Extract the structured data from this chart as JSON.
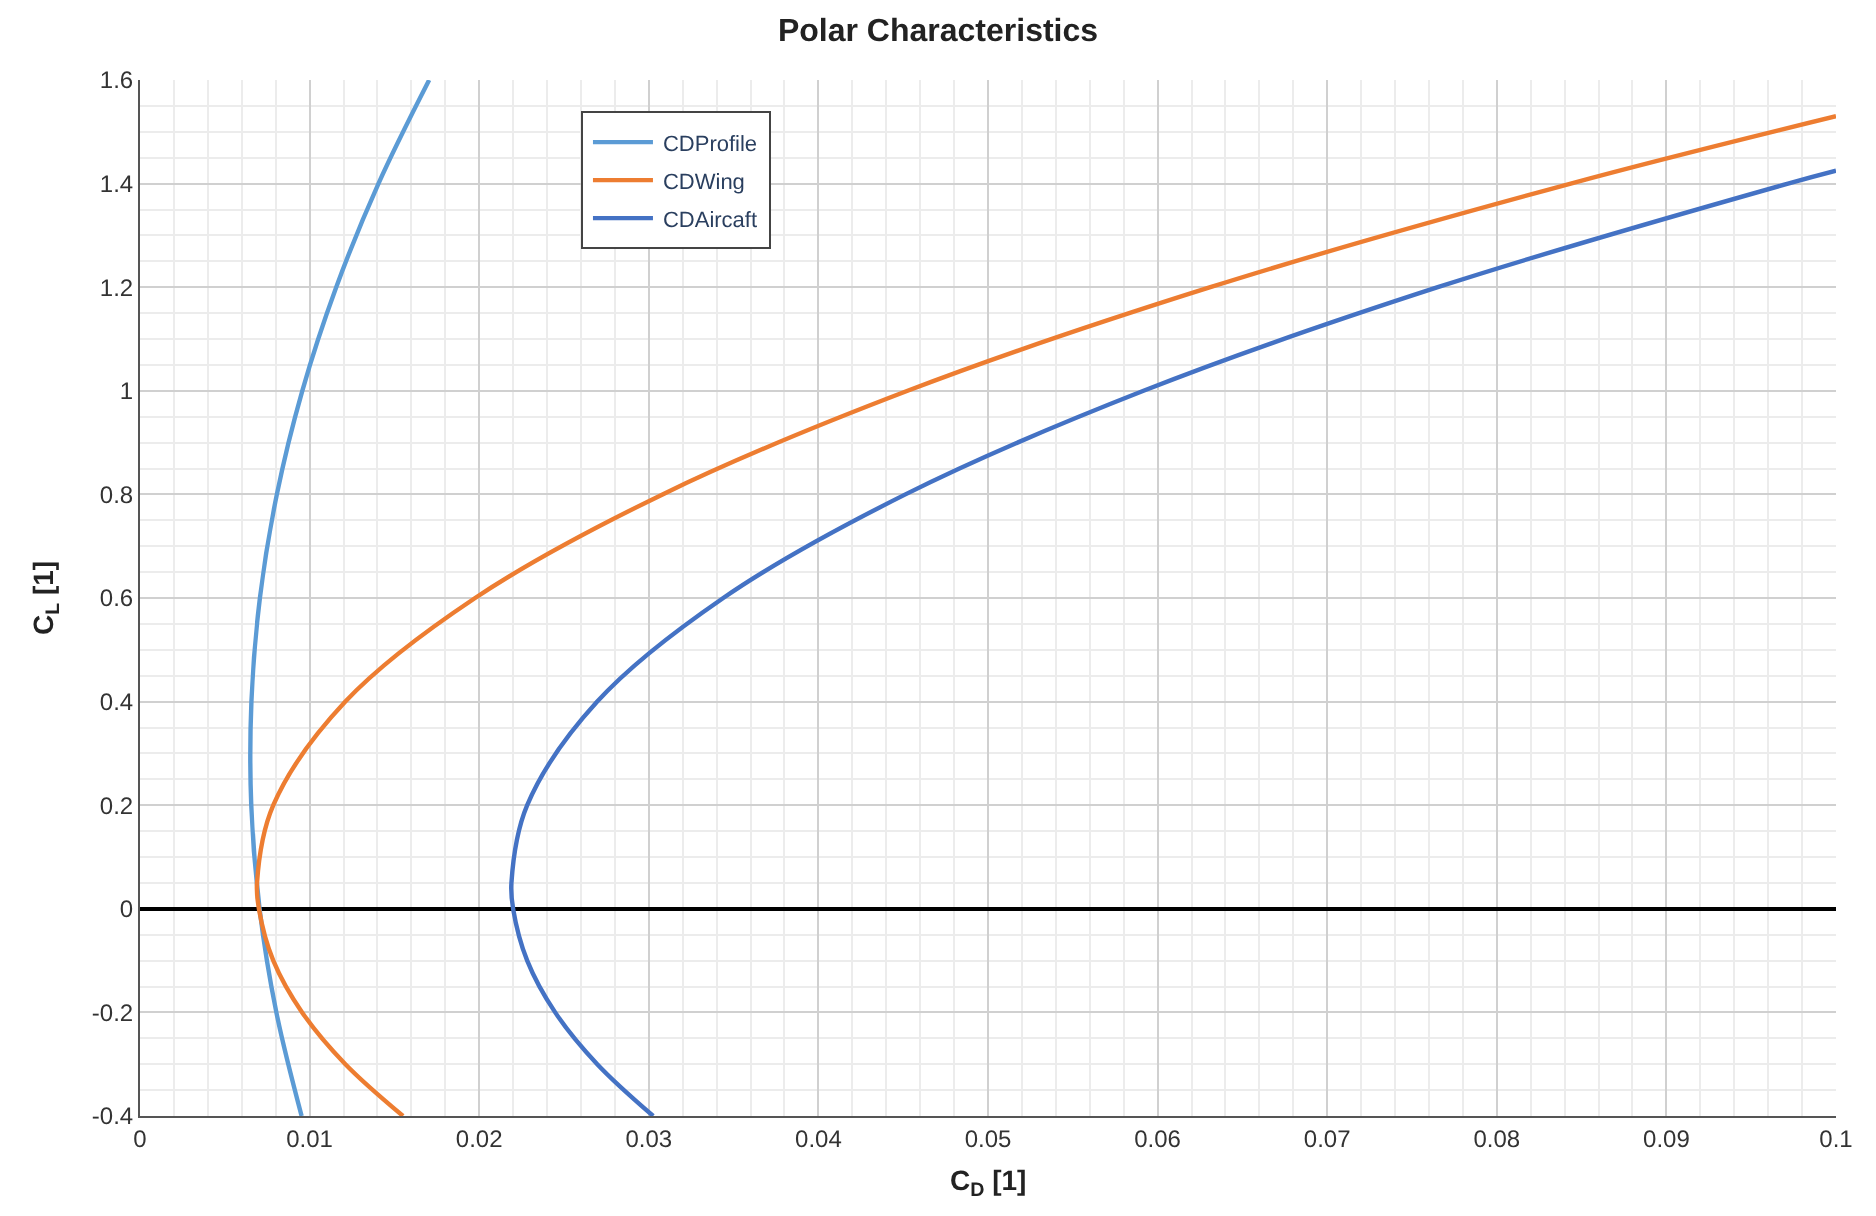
{
  "chart_data": {
    "type": "line",
    "title": "Polar Characteristics",
    "xlabel": "C$_{D}$ [1]",
    "ylabel": "C$_{L}$ [1]",
    "xlim": [
      0,
      0.1
    ],
    "xticks": [
      0,
      0.01,
      0.02,
      0.03,
      0.04,
      0.05,
      0.06,
      0.07,
      0.08,
      0.09,
      0.1
    ],
    "ylim": [
      -0.4,
      1.6
    ],
    "yticks": [
      -0.4,
      -0.2,
      0,
      0.2,
      0.4,
      0.6,
      0.8,
      1,
      1.2,
      1.4,
      1.6
    ],
    "grid": true,
    "legend": "top left",
    "line_style": "solid",
    "marker": "none",
    "series": [
      {
        "name": "CDProfile",
        "color": "#5b9bd5",
        "x": [
          0.00953,
          0.00804,
          0.00705,
          0.00656,
          0.00657,
          0.00707,
          0.00807,
          0.00957,
          0.01157,
          0.01406,
          0.01705
        ],
        "values": [
          -0.4,
          -0.2,
          0,
          0.2,
          0.4,
          0.6,
          0.8,
          1.0,
          1.2,
          1.4,
          1.6
        ]
      },
      {
        "name": "CDWing",
        "color": "#ed7d31",
        "x": [
          0.01551,
          0.01211,
          0.00956,
          0.00786,
          0.00701,
          0.0069,
          0.00786,
          0.01211,
          0.01976,
          0.03081,
          0.04526,
          0.06311,
          0.08436,
          0.1
        ],
        "values": [
          -0.4,
          -0.3,
          -0.2,
          -0.1,
          0,
          0.05,
          0.2,
          0.4,
          0.6,
          0.8,
          1.0,
          1.2,
          1.4,
          1.53
        ]
      },
      {
        "name": "CDAircaft",
        "color": "#4472c4",
        "x": [
          0.03026,
          0.02696,
          0.02448,
          0.02283,
          0.022,
          0.0219,
          0.02283,
          0.02696,
          0.03439,
          0.04513,
          0.05917,
          0.07652,
          0.09717,
          0.1
        ],
        "values": [
          -0.4,
          -0.3,
          -0.2,
          -0.1,
          0,
          0.05,
          0.2,
          0.4,
          0.6,
          0.8,
          1.0,
          1.2,
          1.4,
          1.425
        ]
      }
    ]
  }
}
